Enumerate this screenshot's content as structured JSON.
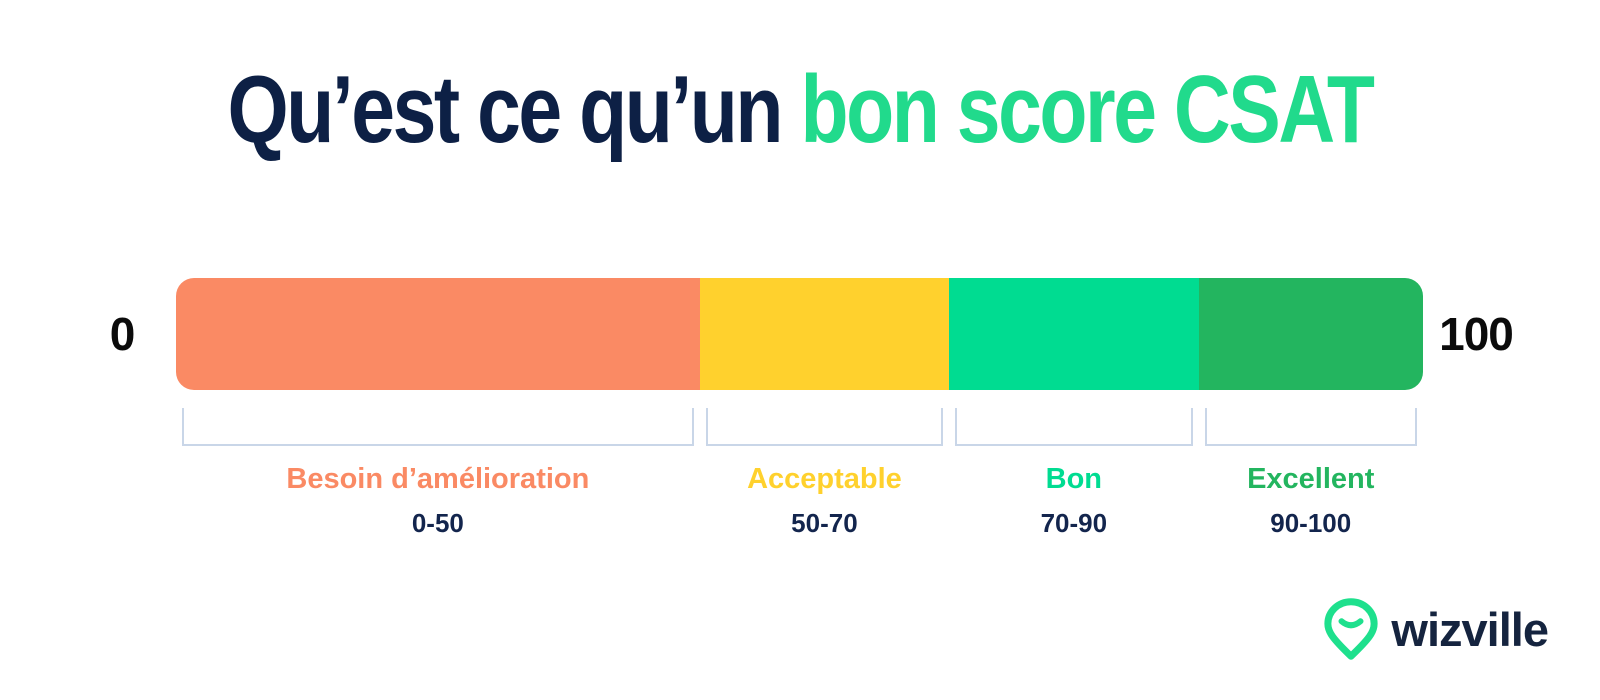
{
  "title": {
    "prefix": "Qu’est ce qu’un ",
    "highlight": "bon score CSAT"
  },
  "scale": {
    "min_label": "0",
    "max_label": "100"
  },
  "chart_data": {
    "type": "bar",
    "orientation": "horizontal",
    "title": "Qu’est ce qu’un bon score CSAT",
    "axis": {
      "min": 0,
      "max": 100,
      "min_label": "0",
      "max_label": "100"
    },
    "grid": false,
    "legend_position": "below-bar",
    "segments": [
      {
        "label": "Besoin d’amélioration",
        "range_label": "0-50",
        "from": 0,
        "to": 50,
        "color": "#FA8A64",
        "width_pct": 42
      },
      {
        "label": "Acceptable",
        "range_label": "50-70",
        "from": 50,
        "to": 70,
        "color": "#FFD12D",
        "width_pct": 20
      },
      {
        "label": "Bon",
        "range_label": "70-90",
        "from": 70,
        "to": 90,
        "color": "#00DC91",
        "width_pct": 20
      },
      {
        "label": "Excellent",
        "range_label": "90-100",
        "from": 90,
        "to": 100,
        "color": "#23B55F",
        "width_pct": 18
      }
    ]
  },
  "colors": {
    "background": "#FFFFFF",
    "title_navy": "#0D2045",
    "title_green": "#21DA8C",
    "endpoint_black": "#0B0B0B",
    "range_navy": "#13254D",
    "bracket": "#C9D6E8",
    "logo_green": "#1EE08D",
    "logo_navy": "#15243F"
  },
  "brand": {
    "name": "wizville",
    "icon": "map-pin-smile-icon"
  }
}
